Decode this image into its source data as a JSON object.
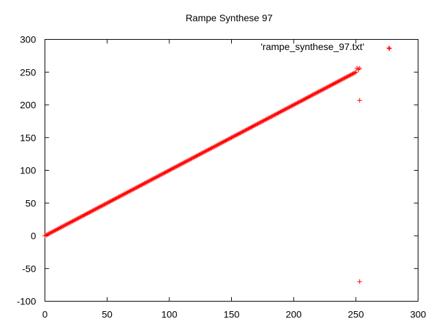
{
  "chart_data": {
    "type": "scatter",
    "title": "Rampe Synthese 97",
    "xlabel": "",
    "ylabel": "",
    "xlim": [
      0,
      300
    ],
    "ylim": [
      -100,
      300
    ],
    "xticks": [
      0,
      50,
      100,
      150,
      200,
      250,
      300
    ],
    "yticks": [
      -100,
      -50,
      0,
      50,
      100,
      150,
      200,
      250,
      300
    ],
    "grid": false,
    "legend_position": "top-right",
    "marker": "+",
    "series": [
      {
        "name": "'rampe_synthese_97.txt'",
        "color": "#ff0000",
        "ramp": {
          "x_start": 0,
          "x_end": 250,
          "slope": 1,
          "intercept": 0
        },
        "outliers": [
          {
            "x": 251,
            "y": 256
          },
          {
            "x": 252,
            "y": 254
          },
          {
            "x": 253,
            "y": 256
          },
          {
            "x": 253,
            "y": 207
          },
          {
            "x": 253,
            "y": -70
          },
          {
            "x": 277,
            "y": 286
          }
        ]
      }
    ]
  }
}
